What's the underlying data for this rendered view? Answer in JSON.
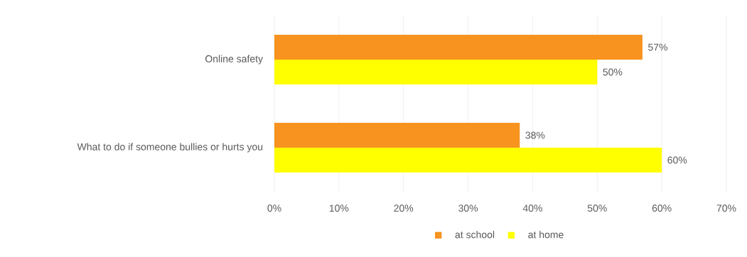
{
  "chart_data": {
    "type": "bar",
    "orientation": "horizontal",
    "categories": [
      "Online safety",
      "What to do if someone bullies or hurts you"
    ],
    "series": [
      {
        "name": "at school",
        "color": "#f7931e",
        "values": [
          57,
          38
        ],
        "value_labels": [
          "57%",
          "38%"
        ]
      },
      {
        "name": "at home",
        "color": "#ffff00",
        "values": [
          50,
          60
        ],
        "value_labels": [
          "50%",
          "60%"
        ]
      }
    ],
    "xlim": [
      0,
      70
    ],
    "xticks": [
      {
        "value": 0,
        "label": "0%"
      },
      {
        "value": 10,
        "label": "10%"
      },
      {
        "value": 20,
        "label": "20%"
      },
      {
        "value": 30,
        "label": "30%"
      },
      {
        "value": 40,
        "label": "40%"
      },
      {
        "value": 50,
        "label": "50%"
      },
      {
        "value": 60,
        "label": "60%"
      },
      {
        "value": 70,
        "label": "70%"
      }
    ],
    "grid": "x",
    "legend": "bottom"
  }
}
